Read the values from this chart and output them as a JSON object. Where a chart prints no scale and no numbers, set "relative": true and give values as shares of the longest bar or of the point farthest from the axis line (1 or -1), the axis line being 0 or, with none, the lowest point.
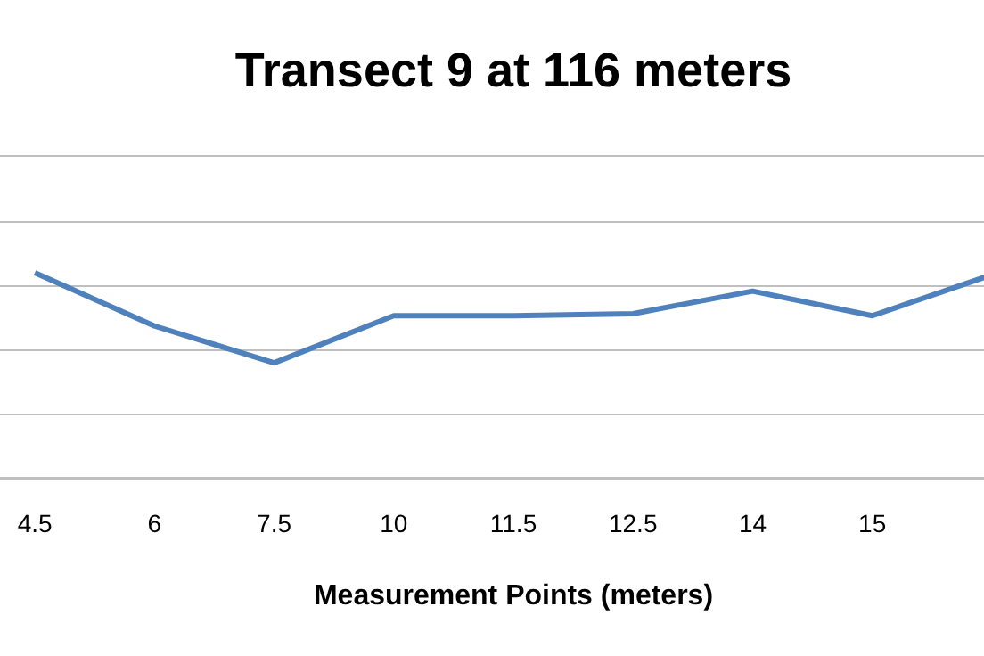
{
  "chart_data": {
    "type": "line",
    "title": "Transect 9 at 116 meters",
    "xlabel": "Measurement Points (meters)",
    "categories": [
      "4.5",
      "6",
      "7.5",
      "10",
      "11.5",
      "12.5",
      "14",
      "15",
      null
    ],
    "relative": true,
    "grid": "y",
    "marker": "none",
    "line_style": "solid",
    "series": [
      {
        "color": "#4f81bd",
        "values": [
          1.0,
          0.74,
          0.56,
          0.79,
          0.79,
          0.8,
          0.91,
          0.79,
          0.99
        ]
      }
    ]
  }
}
